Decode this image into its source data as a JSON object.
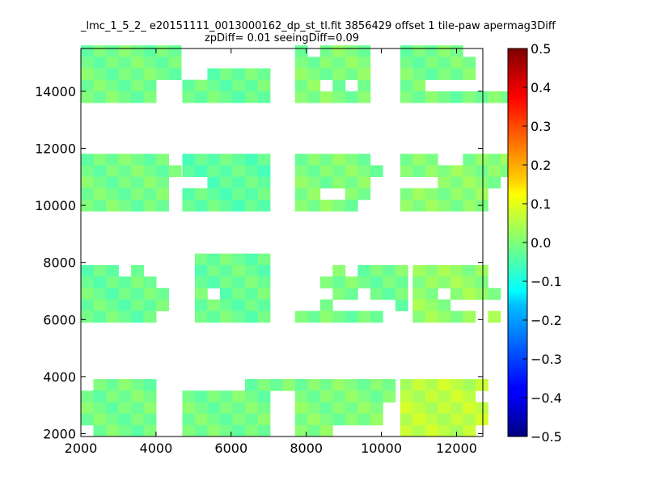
{
  "chart_data": {
    "type": "heatmap",
    "title": "_lmc_1_5_2_ e20151111_0013000162_dp_st_tl.fit 3856429 offset 1 tile-paw apermag3Diff",
    "subtitle": "zpDiff= 0.01 seeingDiff=0.09",
    "xlabel": "",
    "ylabel": "",
    "xlim": [
      2000,
      12700
    ],
    "ylim": [
      1900,
      15500
    ],
    "x_ticks": [
      "2000",
      "4000",
      "6000",
      "8000",
      "10000",
      "12000"
    ],
    "y_ticks": [
      "2000",
      "4000",
      "6000",
      "8000",
      "10000",
      "12000",
      "14000"
    ],
    "colorbar": {
      "colormap": "jet",
      "range": [
        -0.5,
        0.5
      ],
      "ticks": [
        "0.5",
        "0.4",
        "0.3",
        "0.2",
        "0.1",
        "0.0",
        "−0.1",
        "−0.2",
        "−0.3",
        "−0.4",
        "−0.5"
      ]
    },
    "cell_size": {
      "dx": 334,
      "dy": 402
    },
    "blocks": [
      {
        "x0": 2000,
        "y0": 13600,
        "value": -0.01,
        "rows": [
          "11111111",
          "11111111",
          "11111111",
          "111111..",
          "111111.."
        ]
      },
      {
        "x0": 4700,
        "y0": 13600,
        "value": -0.02,
        "rows": [
          ".......",
          ".......",
          "..11111",
          "1111111",
          "1111111"
        ]
      },
      {
        "x0": 7700,
        "y0": 13600,
        "value": 0.0,
        "rows": [
          "1.1111",
          "111111",
          "111111",
          "11.1.1",
          "111111"
        ]
      },
      {
        "x0": 10500,
        "y0": 13600,
        "value": -0.01,
        "rows": [
          "11111.....",
          "111111....",
          "111111....",
          "11.......",
          "1111111111"
        ]
      },
      {
        "x0": 2000,
        "y0": 9800,
        "value": -0.01,
        "rows": [
          "1111111",
          "11111111",
          "1111111",
          "1111111",
          "1111111"
        ]
      },
      {
        "x0": 4700,
        "y0": 9800,
        "value": -0.03,
        "rows": [
          "1111111",
          "1111111",
          "..11111",
          "1111111",
          "1111111"
        ]
      },
      {
        "x0": 7700,
        "y0": 9800,
        "value": 0.0,
        "rows": [
          "111111",
          "1111111",
          "111111",
          "11..11.",
          "11111.."
        ]
      },
      {
        "x0": 10500,
        "y0": 9800,
        "value": 0.01,
        "rows": [
          "111..1111",
          "111111111",
          "...11111..",
          "1111111",
          "1111111.."
        ]
      },
      {
        "x0": 2000,
        "y0": 5900,
        "value": -0.02,
        "rows": [
          "111.1",
          "111111",
          "1111111",
          "1111111",
          "111111"
        ]
      },
      {
        "x0": 4700,
        "y0": 5900,
        "value": -0.02,
        "rows": [
          ".111111",
          ".111111",
          ".111111",
          ".1.1111",
          ".111111",
          ".111111"
        ]
      },
      {
        "x0": 7700,
        "y0": 5900,
        "value": -0.01,
        "rows": [
          "...1.1111",
          "..1111111",
          "...11.111",
          "..1.....1",
          "1111111"
        ]
      },
      {
        "x0": 10500,
        "y0": 5900,
        "value": 0.02,
        "rows": [
          ".111111",
          ".111111",
          ".11.1111",
          ".111....",
          ".11111.1"
        ]
      },
      {
        "x0": 2000,
        "y0": 1900,
        "value": -0.01,
        "rows": [
          ".11111",
          "111111",
          "111111",
          "111111",
          ".11111"
        ]
      },
      {
        "x0": 4700,
        "y0": 1900,
        "value": -0.01,
        "rows": [
          ".....11111",
          "1111111",
          "1111111",
          "1111111",
          "1111111"
        ]
      },
      {
        "x0": 7700,
        "y0": 1900,
        "value": 0.0,
        "rows": [
          "11111111",
          "11111111",
          "1111111",
          "1111111",
          "111....."
        ]
      },
      {
        "x0": 10500,
        "y0": 1900,
        "value": 0.06,
        "rows": [
          "1111111",
          "111111",
          "1111111",
          "1111111",
          "111111"
        ]
      }
    ]
  }
}
